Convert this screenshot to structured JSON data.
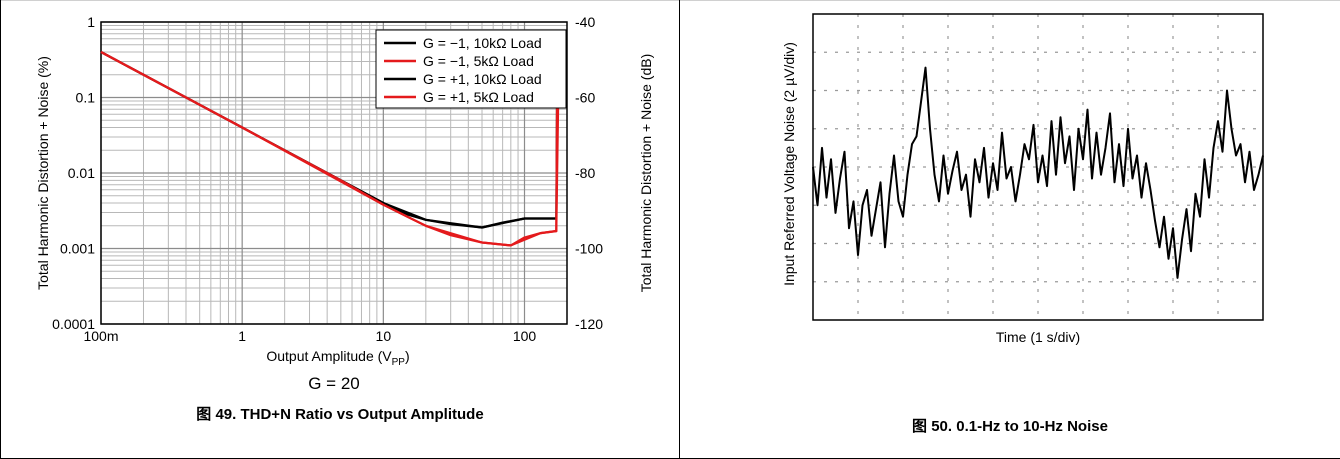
{
  "chart_data": [
    {
      "type": "line",
      "caption": "图 49. THD+N Ratio vs Output Amplitude",
      "xlabel": "Output Amplitude (V",
      "xlabel_sub": "PP",
      "xlabel_end": ")",
      "ylabel": "Total Harmonic Distortion + Noise (%)",
      "ylabel_right": "Total Harmonic Distortion + Noise (dB)",
      "condition": "G = 20",
      "x_scale": "log",
      "y_scale": "log",
      "xlim": [
        0.1,
        200
      ],
      "ylim": [
        0.0001,
        1
      ],
      "ylim_right": [
        -120,
        -40
      ],
      "x_ticks": [
        {
          "v": 0.1,
          "label": "100m"
        },
        {
          "v": 1,
          "label": "1"
        },
        {
          "v": 10,
          "label": "10"
        },
        {
          "v": 100,
          "label": "100"
        }
      ],
      "y_ticks": [
        {
          "v": 1,
          "label": "1"
        },
        {
          "v": 0.1,
          "label": "0.1"
        },
        {
          "v": 0.01,
          "label": "0.01"
        },
        {
          "v": 0.001,
          "label": "0.001"
        },
        {
          "v": 0.0001,
          "label": "0.0001"
        }
      ],
      "y_ticks_right": [
        "-40",
        "-60",
        "-80",
        "-100",
        "-120"
      ],
      "grid": true,
      "legend_position": "top-right",
      "series": [
        {
          "name": "G = −1, 10kΩ Load",
          "color": "#000000",
          "x": [
            0.1,
            0.2,
            0.5,
            1,
            2,
            5,
            10,
            15,
            20,
            30,
            50,
            70,
            100,
            150,
            168,
            170,
            175
          ],
          "y": [
            0.4,
            0.2,
            0.08,
            0.04,
            0.02,
            0.008,
            0.004,
            0.0028,
            0.0024,
            0.0021,
            0.0019,
            0.0022,
            0.0025,
            0.0025,
            0.0025,
            0.08,
            0.3
          ]
        },
        {
          "name": "G = −1, 5kΩ Load",
          "color": "#e41a1c",
          "x": [
            0.1,
            0.2,
            0.5,
            1,
            2,
            5,
            10,
            15,
            20,
            30,
            50,
            80,
            100,
            130,
            165,
            168,
            170,
            175
          ],
          "y": [
            0.4,
            0.2,
            0.08,
            0.04,
            0.02,
            0.008,
            0.0038,
            0.0026,
            0.002,
            0.0015,
            0.0012,
            0.0011,
            0.0014,
            0.0016,
            0.0017,
            0.0017,
            0.07,
            0.35
          ]
        },
        {
          "name": "G = +1, 10kΩ Load",
          "color": "#000000",
          "x": [
            0.1,
            1,
            10,
            20,
            50,
            100,
            168
          ],
          "y": [
            0.4,
            0.04,
            0.004,
            0.0024,
            0.0019,
            0.0025,
            0.0025
          ]
        },
        {
          "name": "G = +1, 5kΩ Load",
          "color": "#e41a1c",
          "x": [
            0.1,
            1,
            10,
            20,
            50,
            80,
            130,
            168,
            175
          ],
          "y": [
            0.4,
            0.04,
            0.0038,
            0.002,
            0.0012,
            0.0011,
            0.0016,
            0.0017,
            0.35
          ]
        }
      ]
    },
    {
      "type": "line",
      "caption": "图 50. 0.1-Hz to 10-Hz Noise",
      "xlabel": "Time (1 s/div)",
      "ylabel": "Input Referred Voltage Noise (2 µV/div)",
      "x_divisions": 10,
      "y_divisions": 8,
      "xlim": [
        0,
        10
      ],
      "ylim": [
        -4,
        4
      ],
      "grid": true,
      "series": [
        {
          "name": "",
          "color": "#000000",
          "x": [
            0,
            0.1,
            0.2,
            0.3,
            0.4,
            0.5,
            0.6,
            0.7,
            0.8,
            0.9,
            1.0,
            1.1,
            1.2,
            1.3,
            1.4,
            1.5,
            1.6,
            1.7,
            1.8,
            1.9,
            2.0,
            2.1,
            2.2,
            2.3,
            2.4,
            2.5,
            2.6,
            2.7,
            2.8,
            2.9,
            3.0,
            3.1,
            3.2,
            3.3,
            3.4,
            3.5,
            3.6,
            3.7,
            3.8,
            3.9,
            4.0,
            4.1,
            4.2,
            4.3,
            4.4,
            4.5,
            4.6,
            4.7,
            4.8,
            4.9,
            5.0,
            5.1,
            5.2,
            5.3,
            5.4,
            5.5,
            5.6,
            5.7,
            5.8,
            5.9,
            6.0,
            6.1,
            6.2,
            6.3,
            6.4,
            6.5,
            6.6,
            6.7,
            6.8,
            6.9,
            7.0,
            7.1,
            7.2,
            7.3,
            7.4,
            7.5,
            7.6,
            7.7,
            7.8,
            7.9,
            8.0,
            8.1,
            8.2,
            8.3,
            8.4,
            8.5,
            8.6,
            8.7,
            8.8,
            8.9,
            9.0,
            9.1,
            9.2,
            9.3,
            9.4,
            9.5,
            9.6,
            9.7,
            9.8,
            9.9,
            10.0
          ],
          "y": [
            0.0,
            -1.0,
            0.5,
            -0.8,
            0.2,
            -1.2,
            -0.3,
            0.4,
            -1.6,
            -0.9,
            -2.3,
            -1.0,
            -0.6,
            -1.8,
            -1.1,
            -0.4,
            -2.1,
            -0.7,
            0.3,
            -0.9,
            -1.3,
            -0.2,
            0.6,
            0.8,
            1.7,
            2.6,
            1.0,
            -0.2,
            -0.9,
            0.3,
            -0.7,
            -0.1,
            0.4,
            -0.6,
            -0.2,
            -1.3,
            0.2,
            -0.4,
            0.5,
            -0.8,
            0.1,
            -0.6,
            0.9,
            -0.3,
            0.0,
            -0.9,
            -0.2,
            0.6,
            0.2,
            1.1,
            -0.4,
            0.3,
            -0.5,
            1.2,
            -0.2,
            1.3,
            0.1,
            0.8,
            -0.6,
            1.0,
            0.2,
            1.5,
            -0.3,
            0.9,
            -0.2,
            0.5,
            1.4,
            -0.4,
            0.6,
            -0.5,
            1.0,
            -0.3,
            0.3,
            -0.8,
            0.1,
            -0.6,
            -1.4,
            -2.1,
            -1.3,
            -2.4,
            -1.6,
            -2.9,
            -1.9,
            -1.1,
            -2.2,
            -0.7,
            -1.3,
            0.2,
            -0.8,
            0.5,
            1.2,
            0.4,
            2.0,
            1.0,
            0.3,
            0.6,
            -0.4,
            0.4,
            -0.6,
            -0.2,
            0.3
          ]
        }
      ]
    }
  ]
}
